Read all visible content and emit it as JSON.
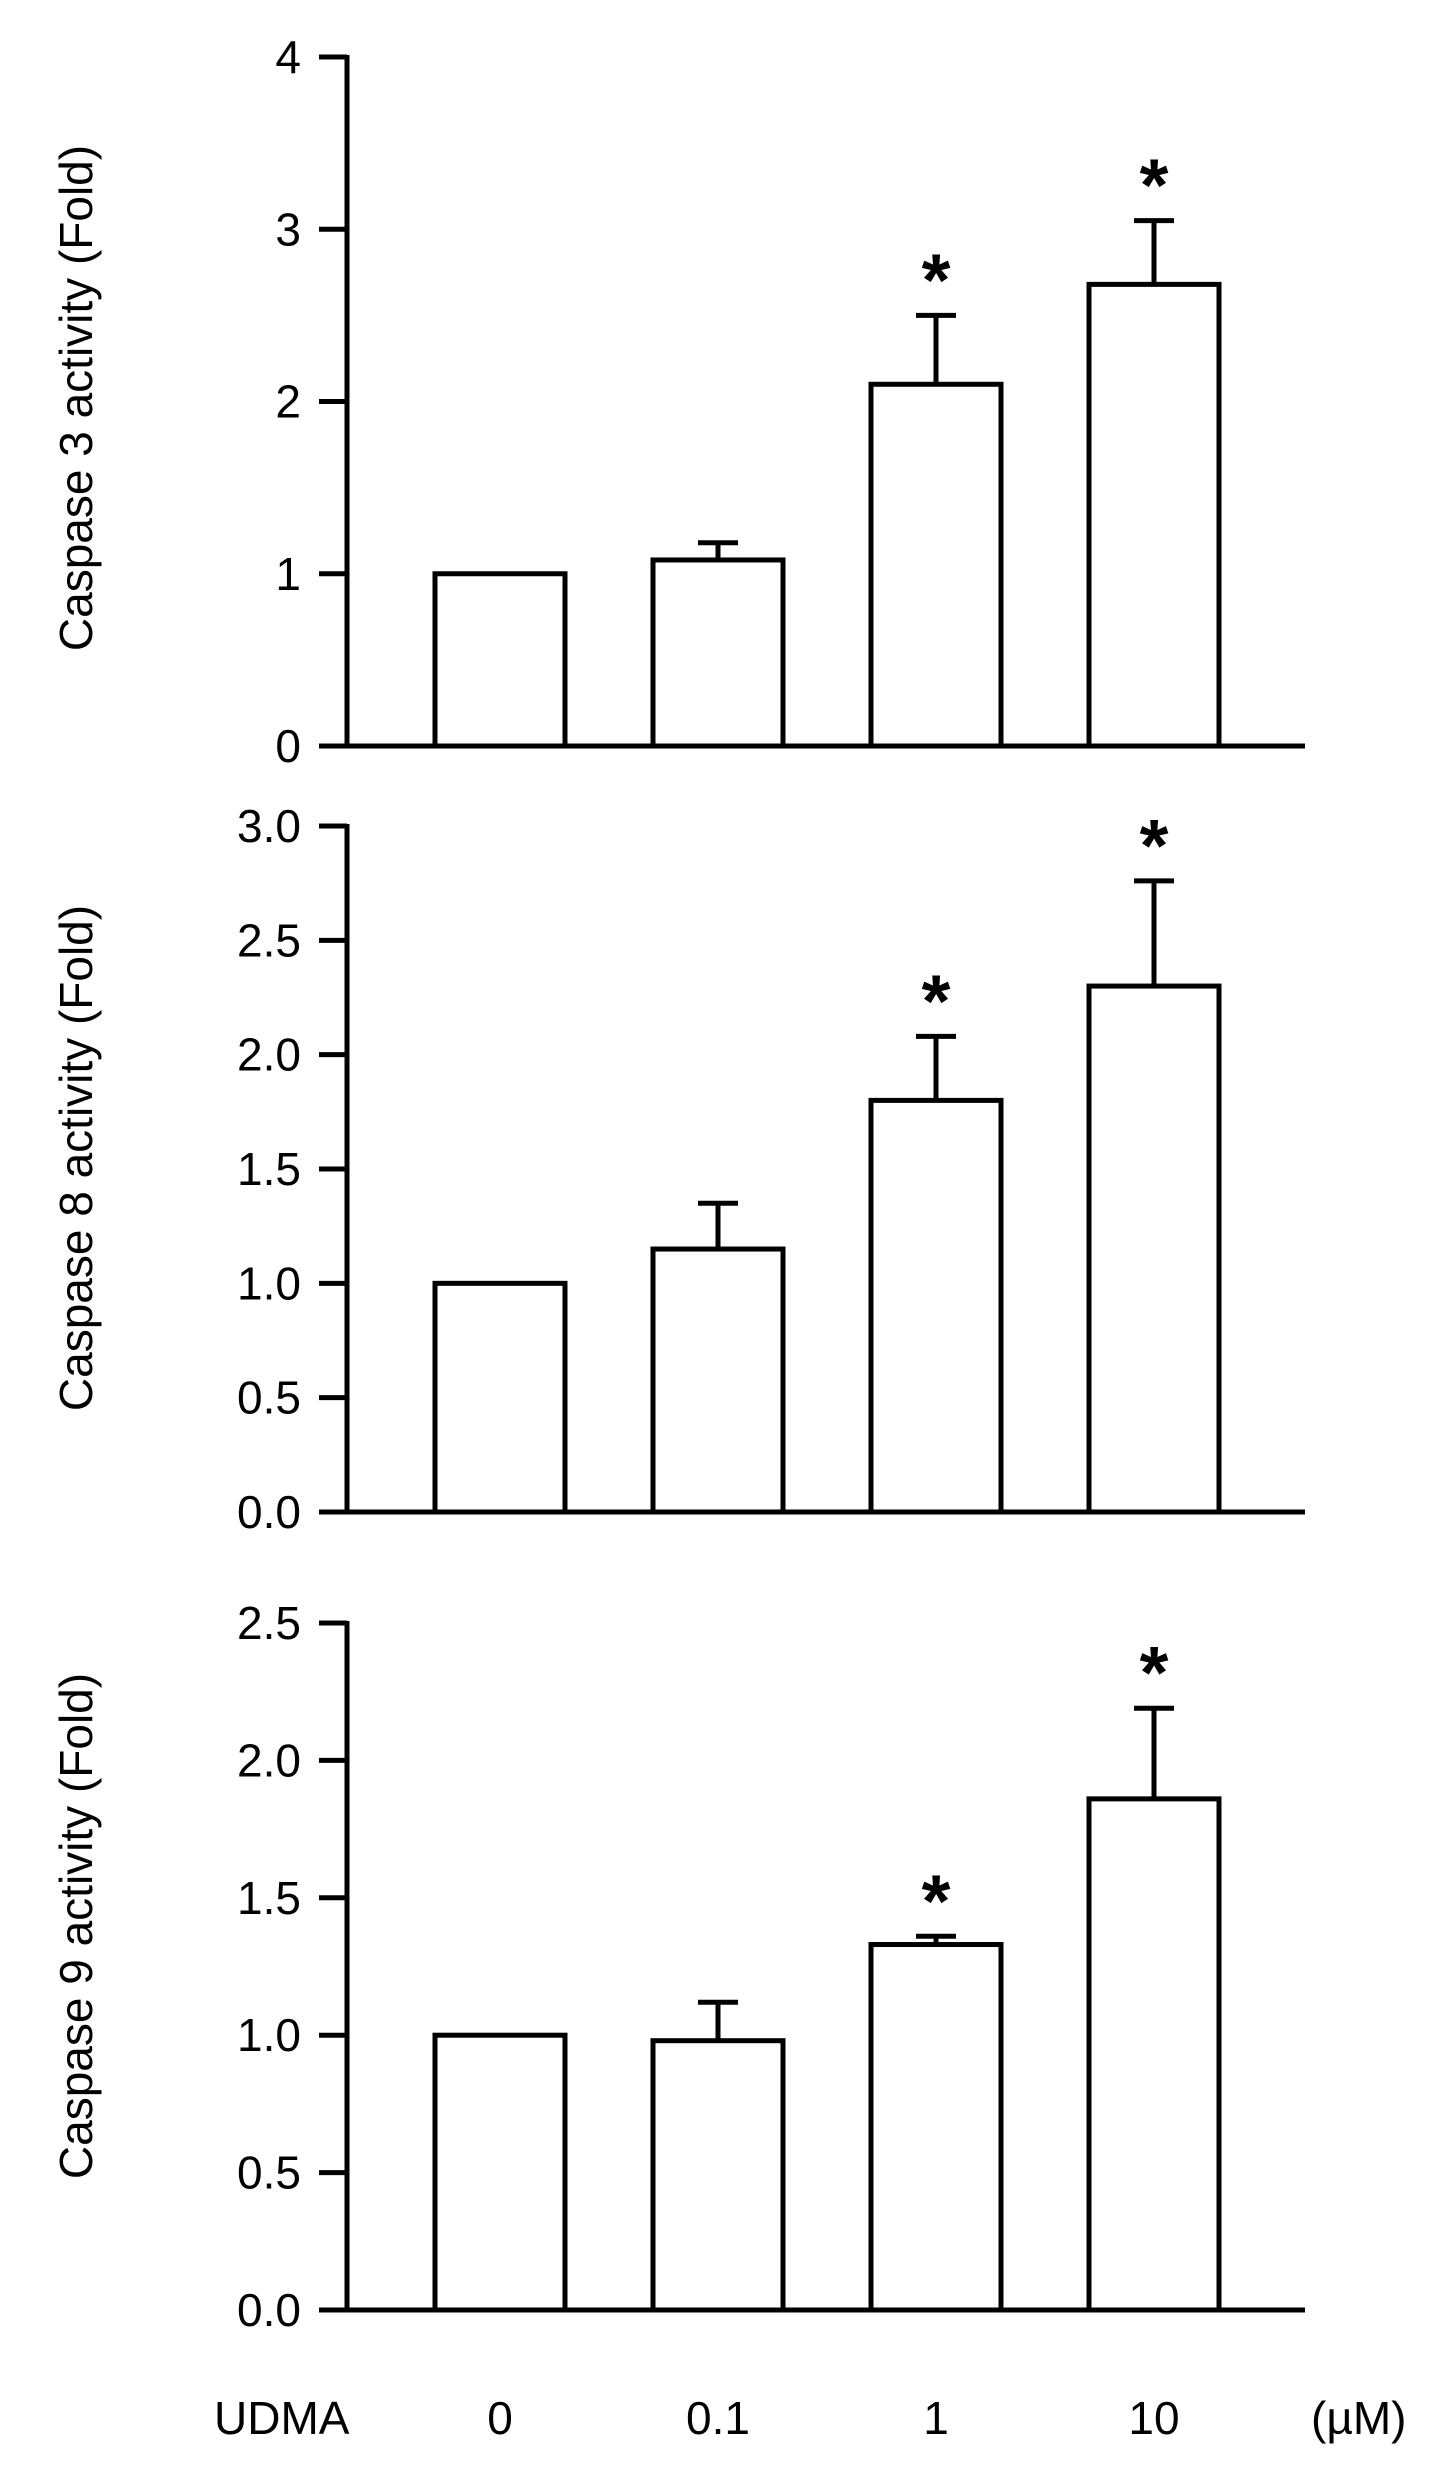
{
  "colors": {
    "ink": "#000000",
    "bar_fill": "#ffffff",
    "background": "#ffffff"
  },
  "chart_data": [
    {
      "type": "bar",
      "categories": [
        "0",
        "0.1",
        "1",
        "10"
      ],
      "values": [
        1.0,
        1.08,
        2.1,
        2.68
      ],
      "errors": [
        0.0,
        0.1,
        0.4,
        0.37
      ],
      "significant": [
        false,
        false,
        true,
        true
      ],
      "significance_marker": "*",
      "ylabel": "Caspase 3 activity (Fold)",
      "ylim": [
        0,
        4
      ],
      "yticks": [
        0,
        1,
        2,
        3,
        4
      ],
      "ytick_labels": [
        "0",
        "1",
        "2",
        "3",
        "4"
      ],
      "grid": false,
      "xlabel": "",
      "show_category_labels": false
    },
    {
      "type": "bar",
      "categories": [
        "0",
        "0.1",
        "1",
        "10"
      ],
      "values": [
        1.0,
        1.15,
        1.8,
        2.3
      ],
      "errors": [
        0.0,
        0.2,
        0.28,
        0.46
      ],
      "significant": [
        false,
        false,
        true,
        true
      ],
      "significance_marker": "*",
      "ylabel": "Caspase 8 activity (Fold)",
      "ylim": [
        0,
        3
      ],
      "yticks": [
        0,
        0.5,
        1,
        1.5,
        2,
        2.5,
        3
      ],
      "ytick_labels": [
        "0.0",
        "0.5",
        "1.0",
        "1.5",
        "2.0",
        "2.5",
        "3.0"
      ],
      "grid": false,
      "xlabel": "",
      "show_category_labels": false
    },
    {
      "type": "bar",
      "categories": [
        "0",
        "0.1",
        "1",
        "10"
      ],
      "values": [
        1.0,
        0.98,
        1.33,
        1.86
      ],
      "errors": [
        0.0,
        0.14,
        0.03,
        0.33
      ],
      "significant": [
        false,
        false,
        true,
        true
      ],
      "significance_marker": "*",
      "ylabel": "Caspase 9 activity (Fold)",
      "ylim": [
        0,
        2.5
      ],
      "yticks": [
        0,
        0.5,
        1,
        1.5,
        2,
        2.5
      ],
      "ytick_labels": [
        "0.0",
        "0.5",
        "1.0",
        "1.5",
        "2.0",
        "2.5"
      ],
      "grid": false,
      "xlabel": "",
      "show_category_labels": true,
      "x_prefix_label": "UDMA",
      "x_unit_label": "(µM)"
    }
  ]
}
